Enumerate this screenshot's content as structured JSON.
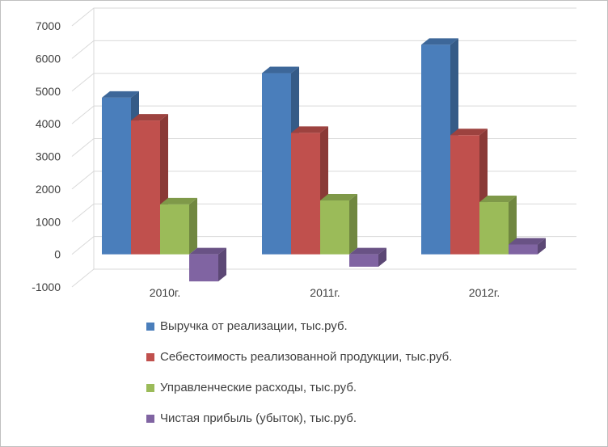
{
  "chart_data": {
    "type": "bar",
    "categories": [
      "2010г.",
      "2011г.",
      "2012г."
    ],
    "series": [
      {
        "name": "Выручка от реализации, тыс.руб.",
        "color": "#4a7ebb",
        "values": [
          4800,
          5550,
          6420
        ]
      },
      {
        "name": "Себестоимость реализованной продукции, тыс.руб.",
        "color": "#c0504d",
        "values": [
          4100,
          3720,
          3650
        ]
      },
      {
        "name": "Управленческие расходы, тыс.руб.",
        "color": "#9bbb59",
        "values": [
          1530,
          1650,
          1600
        ]
      },
      {
        "name": "Чистая прибыль (убыток), тыс.руб.",
        "color": "#8064a2",
        "values": [
          -830,
          -380,
          300
        ]
      }
    ],
    "yticks": [
      "-1000",
      "0",
      "1000",
      "2000",
      "3000",
      "4000",
      "5000",
      "6000",
      "7000"
    ],
    "ylim": [
      -1000,
      7000
    ],
    "grid": true,
    "legend_position": "bottom",
    "title": "",
    "xlabel": "",
    "ylabel": ""
  }
}
